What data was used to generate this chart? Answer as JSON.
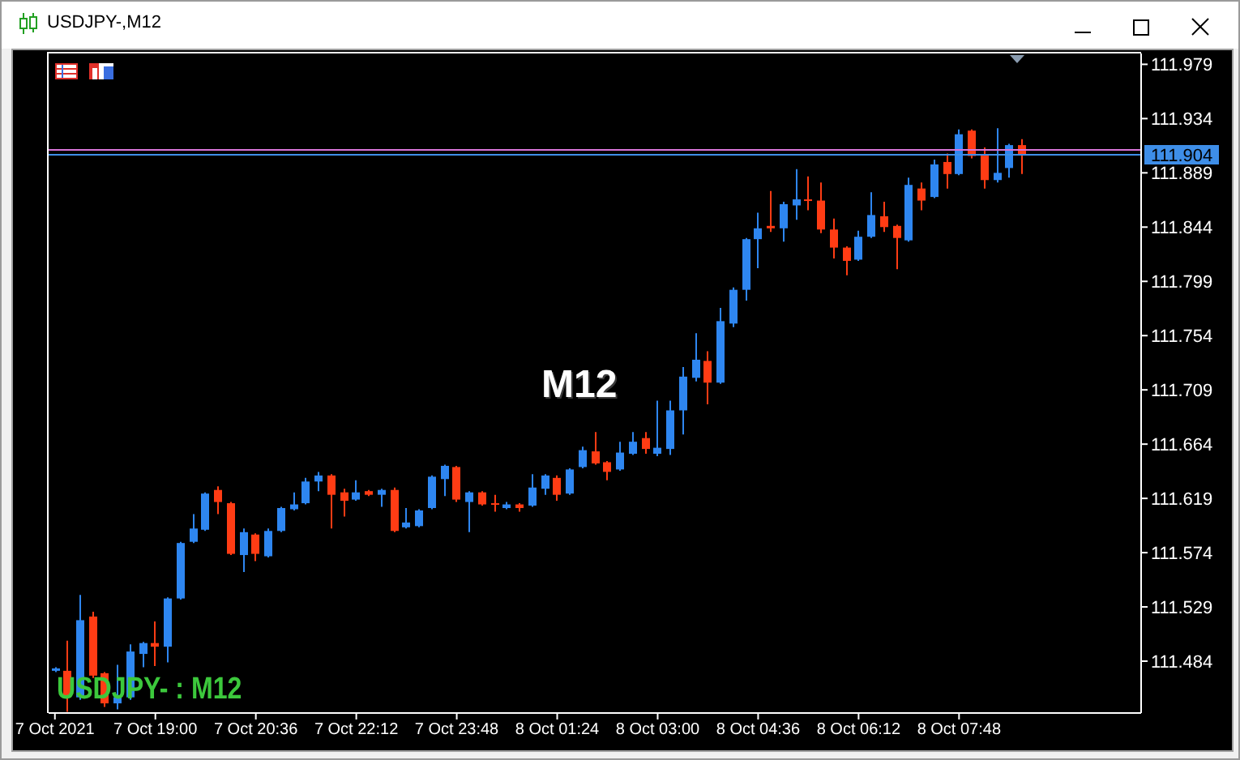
{
  "chart_data": {
    "type": "candlestick",
    "title": "USDJPY-,M12",
    "annotations": [
      "M12",
      "USDJPY- : M12"
    ],
    "categories": [
      "7 Oct 2021",
      null,
      null,
      null,
      null,
      null,
      null,
      null,
      "7 Oct 19:00",
      null,
      null,
      null,
      null,
      null,
      null,
      null,
      "7 Oct 20:36",
      null,
      null,
      null,
      null,
      null,
      null,
      null,
      "7 Oct 22:12",
      null,
      null,
      null,
      null,
      null,
      null,
      null,
      "7 Oct 23:48",
      null,
      null,
      null,
      null,
      null,
      null,
      null,
      "8 Oct 01:24",
      null,
      null,
      null,
      null,
      null,
      null,
      null,
      "8 Oct 03:00",
      null,
      null,
      null,
      null,
      null,
      null,
      null,
      "8 Oct 04:36",
      null,
      null,
      null,
      null,
      null,
      null,
      null,
      "8 Oct 06:12",
      null,
      null,
      null,
      null,
      null,
      null,
      null,
      "8 Oct 07:48",
      null,
      null,
      null,
      null,
      null,
      null,
      null,
      null,
      null,
      null,
      null,
      null,
      null,
      null
    ],
    "ohlc": [
      [
        111.476,
        111.479,
        111.475,
        111.478
      ],
      [
        111.476,
        111.501,
        111.442,
        111.454
      ],
      [
        111.454,
        111.539,
        111.452,
        111.518
      ],
      [
        111.521,
        111.525,
        111.47,
        111.472
      ],
      [
        111.474,
        111.475,
        111.446,
        111.449
      ],
      [
        111.449,
        111.481,
        111.444,
        111.454
      ],
      [
        111.454,
        111.498,
        111.452,
        111.492
      ],
      [
        111.49,
        111.5,
        111.479,
        111.499
      ],
      [
        111.499,
        111.517,
        111.48,
        111.496
      ],
      [
        111.496,
        111.537,
        111.483,
        111.536
      ],
      [
        111.536,
        111.583,
        111.535,
        111.582
      ],
      [
        111.583,
        111.606,
        111.582,
        111.594
      ],
      [
        111.593,
        111.624,
        111.592,
        111.623
      ],
      [
        111.626,
        111.629,
        111.606,
        111.616
      ],
      [
        111.615,
        111.616,
        111.572,
        111.573
      ],
      [
        111.572,
        111.594,
        111.558,
        111.591
      ],
      [
        111.589,
        111.59,
        111.567,
        111.573
      ],
      [
        111.571,
        111.594,
        111.57,
        111.592
      ],
      [
        111.592,
        111.612,
        111.591,
        111.611
      ],
      [
        111.61,
        111.624,
        111.609,
        111.614
      ],
      [
        111.615,
        111.636,
        111.614,
        111.633
      ],
      [
        111.633,
        111.641,
        111.625,
        111.638
      ],
      [
        111.638,
        111.639,
        111.594,
        111.622
      ],
      [
        111.624,
        111.627,
        111.604,
        111.617
      ],
      [
        111.618,
        111.634,
        111.617,
        111.624
      ],
      [
        111.625,
        111.626,
        111.621,
        111.622
      ],
      [
        111.622,
        111.627,
        111.612,
        111.626
      ],
      [
        111.626,
        111.628,
        111.591,
        111.592
      ],
      [
        111.595,
        111.611,
        111.594,
        111.599
      ],
      [
        111.596,
        111.61,
        111.595,
        111.609
      ],
      [
        111.611,
        111.638,
        111.61,
        111.637
      ],
      [
        111.635,
        111.647,
        111.621,
        111.646
      ],
      [
        111.645,
        111.646,
        111.616,
        111.618
      ],
      [
        111.616,
        111.625,
        111.591,
        111.624
      ],
      [
        111.624,
        111.625,
        111.613,
        111.614
      ],
      [
        111.615,
        111.622,
        111.608,
        111.614
      ],
      [
        111.611,
        111.616,
        111.61,
        111.614
      ],
      [
        111.614,
        111.615,
        111.608,
        111.611
      ],
      [
        111.613,
        111.639,
        111.612,
        111.628
      ],
      [
        111.627,
        111.639,
        111.622,
        111.638
      ],
      [
        111.636,
        111.638,
        111.617,
        111.622
      ],
      [
        111.623,
        111.644,
        111.622,
        111.643
      ],
      [
        111.645,
        111.662,
        111.644,
        111.659
      ],
      [
        111.658,
        111.674,
        111.647,
        111.648
      ],
      [
        111.649,
        111.65,
        111.634,
        111.641
      ],
      [
        111.643,
        111.666,
        111.642,
        111.657
      ],
      [
        111.656,
        111.674,
        111.655,
        111.666
      ],
      [
        111.669,
        111.674,
        111.656,
        111.66
      ],
      [
        111.656,
        111.7,
        111.654,
        111.661
      ],
      [
        111.66,
        111.7,
        111.655,
        111.692
      ],
      [
        111.692,
        111.728,
        111.672,
        111.72
      ],
      [
        111.719,
        111.756,
        111.716,
        111.734
      ],
      [
        111.733,
        111.741,
        111.697,
        111.715
      ],
      [
        111.715,
        111.777,
        111.714,
        111.766
      ],
      [
        111.764,
        111.794,
        111.761,
        111.792
      ],
      [
        111.792,
        111.835,
        111.783,
        111.834
      ],
      [
        111.834,
        111.856,
        111.81,
        111.843
      ],
      [
        111.845,
        111.874,
        111.84,
        111.843
      ],
      [
        111.843,
        111.865,
        111.832,
        111.863
      ],
      [
        111.862,
        111.892,
        111.85,
        111.867
      ],
      [
        111.867,
        111.886,
        111.858,
        111.866
      ],
      [
        111.866,
        111.881,
        111.839,
        111.842
      ],
      [
        111.842,
        111.851,
        111.818,
        111.827
      ],
      [
        111.827,
        111.828,
        111.804,
        111.816
      ],
      [
        111.817,
        111.841,
        111.816,
        111.836
      ],
      [
        111.836,
        111.873,
        111.835,
        111.854
      ],
      [
        111.853,
        111.865,
        111.84,
        111.844
      ],
      [
        111.845,
        111.846,
        111.809,
        111.835
      ],
      [
        111.833,
        111.885,
        111.832,
        111.879
      ],
      [
        111.876,
        111.881,
        111.858,
        111.866
      ],
      [
        111.869,
        111.9,
        111.868,
        111.896
      ],
      [
        111.898,
        111.905,
        111.876,
        111.888
      ],
      [
        111.888,
        111.925,
        111.887,
        111.921
      ],
      [
        111.924,
        111.925,
        111.901,
        111.903
      ],
      [
        111.904,
        111.91,
        111.876,
        111.883
      ],
      [
        111.883,
        111.926,
        111.881,
        111.889
      ],
      [
        111.893,
        111.913,
        111.885,
        111.912
      ],
      [
        111.912,
        111.917,
        111.888,
        111.904
      ],
      null,
      null,
      null,
      null,
      null,
      null,
      null,
      null,
      null
    ],
    "colors": [
      "#2e86f0",
      "#ff3c14",
      "#2e86f0",
      "#ff3c14",
      "#ff3c14",
      "#2e86f0",
      "#2e86f0",
      "#2e86f0",
      "#ff3c14",
      "#2e86f0",
      "#2e86f0",
      "#2e86f0",
      "#2e86f0",
      "#ff3c14",
      "#ff3c14",
      "#2e86f0",
      "#ff3c14",
      "#2e86f0",
      "#2e86f0",
      "#2e86f0",
      "#2e86f0",
      "#2e86f0",
      "#ff3c14",
      "#ff3c14",
      "#2e86f0",
      "#ff3c14",
      "#2e86f0",
      "#ff3c14",
      "#2e86f0",
      "#2e86f0",
      "#2e86f0",
      "#2e86f0",
      "#ff3c14",
      "#2e86f0",
      "#ff3c14",
      "#ff3c14",
      "#2e86f0",
      "#ff3c14",
      "#2e86f0",
      "#2e86f0",
      "#ff3c14",
      "#2e86f0",
      "#2e86f0",
      "#ff3c14",
      "#ff3c14",
      "#2e86f0",
      "#2e86f0",
      "#ff3c14",
      "#2e86f0",
      "#2e86f0",
      "#2e86f0",
      "#2e86f0",
      "#ff3c14",
      "#2e86f0",
      "#2e86f0",
      "#2e86f0",
      "#2e86f0",
      "#ff3c14",
      "#2e86f0",
      "#2e86f0",
      "#ff3c14",
      "#ff3c14",
      "#ff3c14",
      "#ff3c14",
      "#2e86f0",
      "#2e86f0",
      "#ff3c14",
      "#ff3c14",
      "#2e86f0",
      "#ff3c14",
      "#2e86f0",
      "#ff3c14",
      "#2e86f0",
      "#ff3c14",
      "#ff3c14",
      "#2e86f0",
      "#2e86f0",
      "#ff3c14",
      null,
      null,
      null,
      null,
      null,
      null,
      null,
      null,
      null
    ],
    "ylim": [
      111.441,
      111.988
    ],
    "yticks": [
      111.979,
      111.934,
      111.889,
      111.844,
      111.799,
      111.754,
      111.709,
      111.664,
      111.619,
      111.574,
      111.529,
      111.484
    ],
    "ref_lines": [
      {
        "axis": "y",
        "value": 111.908,
        "color": "#d874d8"
      },
      {
        "axis": "y",
        "value": 111.904,
        "label": "111.904",
        "color": "#3e8ee8"
      }
    ]
  }
}
